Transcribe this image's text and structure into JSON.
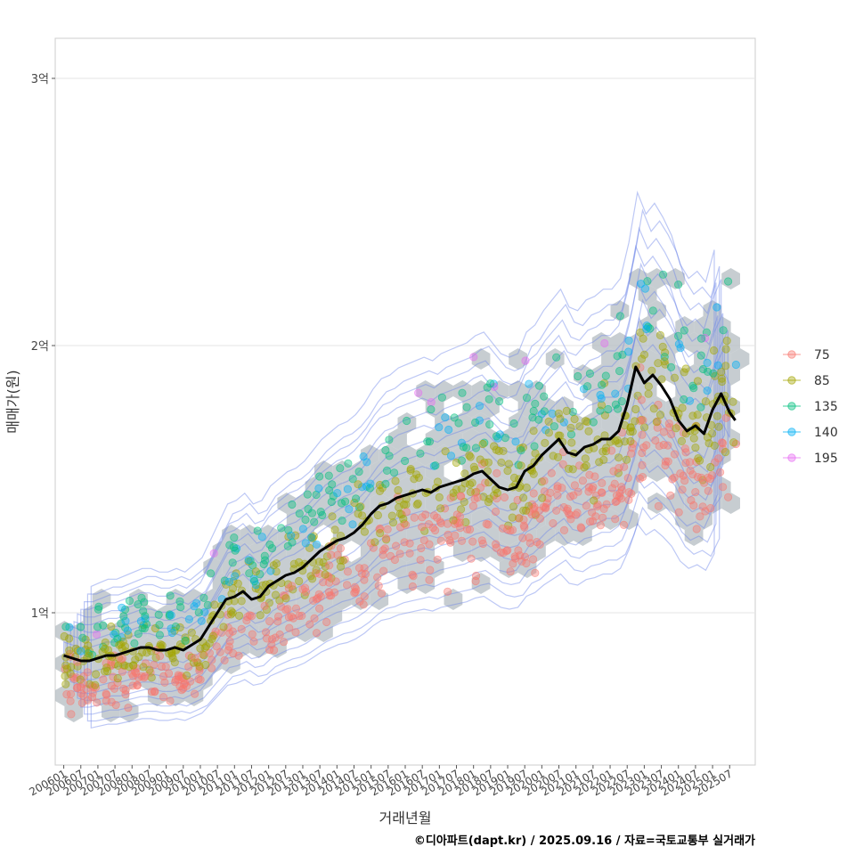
{
  "chart_data": {
    "type": "scatter",
    "title": "",
    "xlabel": "거래년월",
    "ylabel": "매매가(원)",
    "caption": "©디아파트(dapt.kr) / 2025.09.16 / 자료=국토교통부 실거래가",
    "x_ticks": [
      "200601",
      "200607",
      "200701",
      "200707",
      "200801",
      "200807",
      "200901",
      "200907",
      "201001",
      "201007",
      "201101",
      "201107",
      "201201",
      "201207",
      "201301",
      "201307",
      "201401",
      "201407",
      "201501",
      "201507",
      "201601",
      "201607",
      "201701",
      "201707",
      "201801",
      "201807",
      "201901",
      "201907",
      "202001",
      "202007",
      "202101",
      "202107",
      "202201",
      "202207",
      "202301",
      "202307",
      "202401",
      "202407",
      "202501",
      "202507"
    ],
    "x_range": [
      "2005-10",
      "2026-04"
    ],
    "y_ticks": [
      {
        "value": 100000000,
        "label": "1억"
      },
      {
        "value": 200000000,
        "label": "2억"
      },
      {
        "value": 300000000,
        "label": "3억"
      }
    ],
    "y_range": [
      43000000,
      315000000
    ],
    "grid": true,
    "legend": {
      "position": "right",
      "entries": [
        {
          "label": "75",
          "color": "#F8766D"
        },
        {
          "label": "85",
          "color": "#A3A500"
        },
        {
          "label": "135",
          "color": "#00BF7D"
        },
        {
          "label": "140",
          "color": "#00B0F6"
        },
        {
          "label": "195",
          "color": "#E76BF3"
        }
      ]
    },
    "trend_line": {
      "name": "",
      "color": "#000000",
      "points": [
        [
          "2006-01",
          84
        ],
        [
          "2006-04",
          83
        ],
        [
          "2006-07",
          82
        ],
        [
          "2006-10",
          82
        ],
        [
          "2007-01",
          83
        ],
        [
          "2007-04",
          84
        ],
        [
          "2007-07",
          84
        ],
        [
          "2007-10",
          85
        ],
        [
          "2008-01",
          86
        ],
        [
          "2008-04",
          87
        ],
        [
          "2008-07",
          87
        ],
        [
          "2008-10",
          86
        ],
        [
          "2009-01",
          86
        ],
        [
          "2009-04",
          87
        ],
        [
          "2009-07",
          86
        ],
        [
          "2009-10",
          88
        ],
        [
          "2010-01",
          90
        ],
        [
          "2010-04",
          95
        ],
        [
          "2010-07",
          100
        ],
        [
          "2010-10",
          105
        ],
        [
          "2011-01",
          106
        ],
        [
          "2011-04",
          108
        ],
        [
          "2011-07",
          105
        ],
        [
          "2011-10",
          106
        ],
        [
          "2012-01",
          110
        ],
        [
          "2012-04",
          112
        ],
        [
          "2012-07",
          114
        ],
        [
          "2012-10",
          115
        ],
        [
          "2013-01",
          117
        ],
        [
          "2013-04",
          120
        ],
        [
          "2013-07",
          123
        ],
        [
          "2013-10",
          125
        ],
        [
          "2014-01",
          127
        ],
        [
          "2014-04",
          128
        ],
        [
          "2014-07",
          130
        ],
        [
          "2014-10",
          133
        ],
        [
          "2015-01",
          137
        ],
        [
          "2015-04",
          140
        ],
        [
          "2015-07",
          141
        ],
        [
          "2015-10",
          143
        ],
        [
          "2016-01",
          144
        ],
        [
          "2016-04",
          145
        ],
        [
          "2016-07",
          146
        ],
        [
          "2016-10",
          145
        ],
        [
          "2017-01",
          147
        ],
        [
          "2017-04",
          148
        ],
        [
          "2017-07",
          149
        ],
        [
          "2017-10",
          150
        ],
        [
          "2018-01",
          152
        ],
        [
          "2018-04",
          153
        ],
        [
          "2018-07",
          150
        ],
        [
          "2018-10",
          147
        ],
        [
          "2019-01",
          146
        ],
        [
          "2019-04",
          147
        ],
        [
          "2019-07",
          153
        ],
        [
          "2019-10",
          155
        ],
        [
          "2020-01",
          159
        ],
        [
          "2020-04",
          162
        ],
        [
          "2020-07",
          165
        ],
        [
          "2020-10",
          160
        ],
        [
          "2021-01",
          159
        ],
        [
          "2021-04",
          162
        ],
        [
          "2021-07",
          163
        ],
        [
          "2021-10",
          165
        ],
        [
          "2022-01",
          165
        ],
        [
          "2022-04",
          168
        ],
        [
          "2022-07",
          178
        ],
        [
          "2022-10",
          192
        ],
        [
          "2023-01",
          186
        ],
        [
          "2023-04",
          189
        ],
        [
          "2023-07",
          185
        ],
        [
          "2023-10",
          180
        ],
        [
          "2024-01",
          172
        ],
        [
          "2024-04",
          168
        ],
        [
          "2024-07",
          170
        ],
        [
          "2024-10",
          167
        ],
        [
          "2025-01",
          176
        ],
        [
          "2025-04",
          182
        ],
        [
          "2025-07",
          175
        ],
        [
          "2025-09",
          172
        ]
      ]
    }
  }
}
